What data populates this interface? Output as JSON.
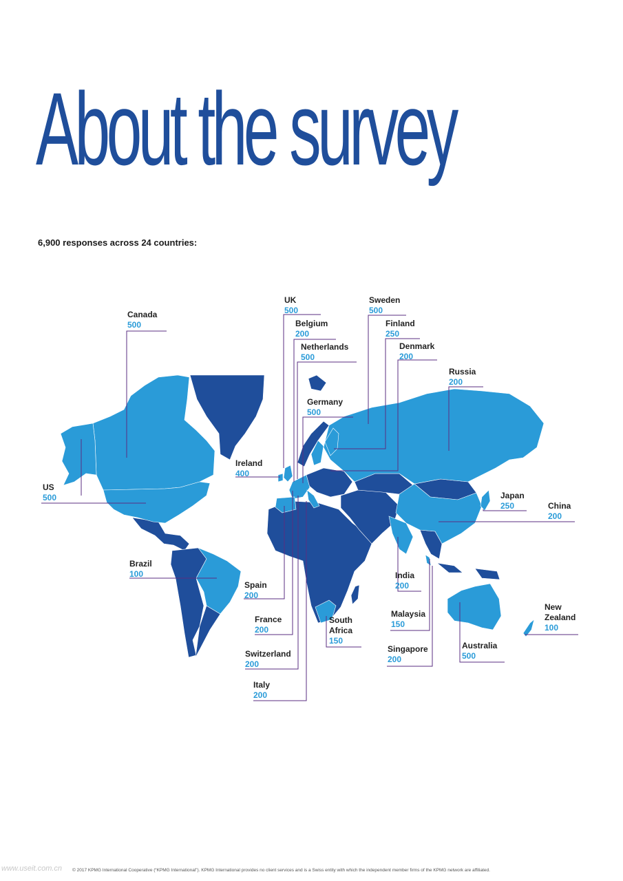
{
  "title": "About the survey",
  "subtitle": "6,900 responses across 24 countries:",
  "footer": "© 2017 KPMG International Cooperative (“KPMG International”). KPMG International provides no client services and is a Swiss entity with which the independent member firms of the KPMG network are affiliated.",
  "watermark": "www.useit.com.cn",
  "colors": {
    "title": "#1f4e9b",
    "surveyed": "#2a9bd8",
    "other": "#1f4e9b",
    "leader": "#5a2d82",
    "value": "#2a9bd8"
  },
  "countries": [
    {
      "name": "Canada",
      "value": "500"
    },
    {
      "name": "US",
      "value": "500"
    },
    {
      "name": "Brazil",
      "value": "100"
    },
    {
      "name": "UK",
      "value": "500"
    },
    {
      "name": "Belgium",
      "value": "200"
    },
    {
      "name": "Netherlands",
      "value": "500"
    },
    {
      "name": "Sweden",
      "value": "500"
    },
    {
      "name": "Finland",
      "value": "250"
    },
    {
      "name": "Denmark",
      "value": "200"
    },
    {
      "name": "Russia",
      "value": "200"
    },
    {
      "name": "Germany",
      "value": "500"
    },
    {
      "name": "Ireland",
      "value": "400"
    },
    {
      "name": "Japan",
      "value": "250"
    },
    {
      "name": "China",
      "value": "200"
    },
    {
      "name": "Spain",
      "value": "200"
    },
    {
      "name": "France",
      "value": "200"
    },
    {
      "name": "Switzerland",
      "value": "200"
    },
    {
      "name": "Italy",
      "value": "200"
    },
    {
      "name": "South Africa",
      "value": "150"
    },
    {
      "name": "India",
      "value": "200"
    },
    {
      "name": "Malaysia",
      "value": "150"
    },
    {
      "name": "Singapore",
      "value": "200"
    },
    {
      "name": "Australia",
      "value": "500"
    },
    {
      "name": "New Zealand",
      "value": "100"
    }
  ]
}
